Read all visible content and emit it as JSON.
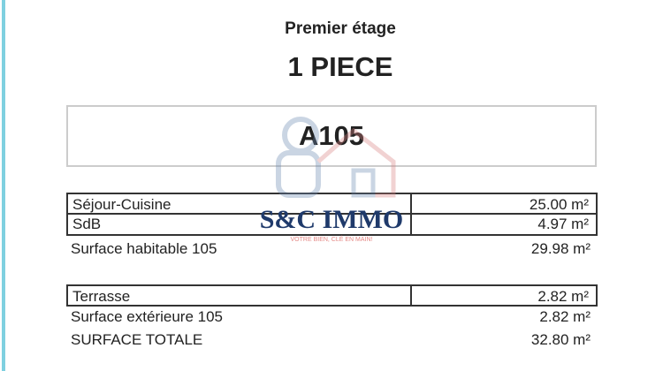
{
  "header": {
    "floor": "Premier étage",
    "type": "1 PIECE"
  },
  "unit": "A105",
  "rooms": [
    {
      "label": "Séjour-Cuisine",
      "value": "25.00 m²"
    },
    {
      "label": "SdB",
      "value": "4.97 m²"
    }
  ],
  "habitable": {
    "label": "Surface habitable 105",
    "value": "29.98 m²"
  },
  "exterior_rooms": [
    {
      "label": "Terrasse",
      "value": "2.82 m²"
    }
  ],
  "exterior": {
    "label": "Surface extérieure 105",
    "value": "2.82 m²"
  },
  "total": {
    "label": "SURFACE TOTALE",
    "value": "32.80 m²"
  },
  "watermark": {
    "brand": "S&C IMMO",
    "tagline": "VOTRE BIEN, CLÉ EN MAIN!",
    "brand_color": "#1f3a6b",
    "accent": "#d9534f"
  }
}
